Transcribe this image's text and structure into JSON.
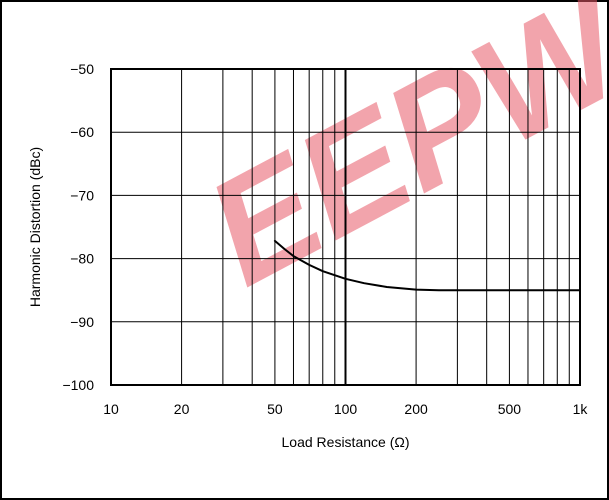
{
  "chart_data": {
    "type": "line",
    "title": "",
    "xlabel": "Load Resistance (Ω)",
    "ylabel": "Harmonic Distortion (dBc)",
    "x_scale": "log",
    "xlim": [
      10,
      1000
    ],
    "ylim": [
      -100,
      -50
    ],
    "x_ticks": [
      10,
      20,
      50,
      100,
      200,
      500,
      1000
    ],
    "x_tick_labels": [
      "10",
      "20",
      "50",
      "100",
      "200",
      "500",
      "1k"
    ],
    "y_ticks": [
      -50,
      -60,
      -70,
      -80,
      -90,
      -100
    ],
    "y_tick_labels": [
      "−50",
      "−60",
      "−70",
      "−80",
      "−90",
      "−100"
    ],
    "grid": true,
    "legend": "none",
    "series": [
      {
        "x": [
          50,
          55,
          60,
          70,
          80,
          100,
          120,
          150,
          200,
          250,
          300,
          400,
          500,
          700,
          1000
        ],
        "y": [
          -77.2,
          -78.5,
          -79.6,
          -81.0,
          -82.0,
          -83.2,
          -83.9,
          -84.5,
          -84.9,
          -85.0,
          -85.0,
          -85.0,
          -85.0,
          -85.0,
          -85.0
        ],
        "color": "#000000"
      }
    ],
    "watermark": {
      "text": "EEPW",
      "color": "#e85a68"
    }
  }
}
